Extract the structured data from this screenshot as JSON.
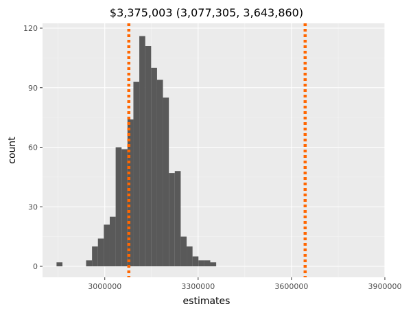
{
  "chart_data": {
    "type": "bar",
    "title": "$3,375,003 (3,077,305, 3,643,860)",
    "xlabel": "estimates",
    "ylabel": "count",
    "xlim": [
      2800000,
      3900000
    ],
    "ylim": [
      0,
      120
    ],
    "x_ticks": [
      {
        "value": 3000000,
        "label": "3000000"
      },
      {
        "value": 3300000,
        "label": "3300000"
      },
      {
        "value": 3600000,
        "label": "3600000"
      },
      {
        "value": 3900000,
        "label": "3900000"
      }
    ],
    "y_ticks": [
      {
        "value": 0,
        "label": "0"
      },
      {
        "value": 30,
        "label": "30"
      },
      {
        "value": 60,
        "label": "60"
      },
      {
        "value": 90,
        "label": "90"
      },
      {
        "value": 120,
        "label": "120"
      }
    ],
    "bins": [
      {
        "start": 2845000,
        "end": 2864000,
        "count": 2
      },
      {
        "start": 2864000,
        "end": 2883000,
        "count": 0
      },
      {
        "start": 2883000,
        "end": 2902000,
        "count": 0
      },
      {
        "start": 2902000,
        "end": 2921000,
        "count": 0
      },
      {
        "start": 2921000,
        "end": 2940000,
        "count": 0
      },
      {
        "start": 2940000,
        "end": 2959000,
        "count": 3
      },
      {
        "start": 2959000,
        "end": 2978000,
        "count": 10
      },
      {
        "start": 2978000,
        "end": 2997000,
        "count": 14
      },
      {
        "start": 2997000,
        "end": 3016000,
        "count": 21
      },
      {
        "start": 3016000,
        "end": 3035000,
        "count": 25
      },
      {
        "start": 3035000,
        "end": 3054000,
        "count": 60
      },
      {
        "start": 3054000,
        "end": 3073000,
        "count": 59
      },
      {
        "start": 3073000,
        "end": 3092000,
        "count": 74
      },
      {
        "start": 3092000,
        "end": 3111000,
        "count": 93
      },
      {
        "start": 3111000,
        "end": 3130000,
        "count": 116
      },
      {
        "start": 3130000,
        "end": 3149000,
        "count": 111
      },
      {
        "start": 3149000,
        "end": 3168000,
        "count": 100
      },
      {
        "start": 3168000,
        "end": 3187000,
        "count": 94
      },
      {
        "start": 3187000,
        "end": 3206000,
        "count": 85
      },
      {
        "start": 3206000,
        "end": 3225000,
        "count": 47
      },
      {
        "start": 3225000,
        "end": 3244000,
        "count": 48
      },
      {
        "start": 3244000,
        "end": 3263000,
        "count": 15
      },
      {
        "start": 3263000,
        "end": 3282000,
        "count": 10
      },
      {
        "start": 3282000,
        "end": 3301000,
        "count": 5
      },
      {
        "start": 3301000,
        "end": 3320000,
        "count": 3
      },
      {
        "start": 3320000,
        "end": 3339000,
        "count": 3
      },
      {
        "start": 3339000,
        "end": 3358000,
        "count": 2
      }
    ],
    "vlines": [
      {
        "value": 3077305,
        "color": "#ff6600",
        "style": "dotted"
      },
      {
        "value": 3643860,
        "color": "#ff6600",
        "style": "dotted"
      }
    ],
    "bar_color": "#595959",
    "panel_background": "#ebebeb",
    "grid": true,
    "legend": "none"
  }
}
